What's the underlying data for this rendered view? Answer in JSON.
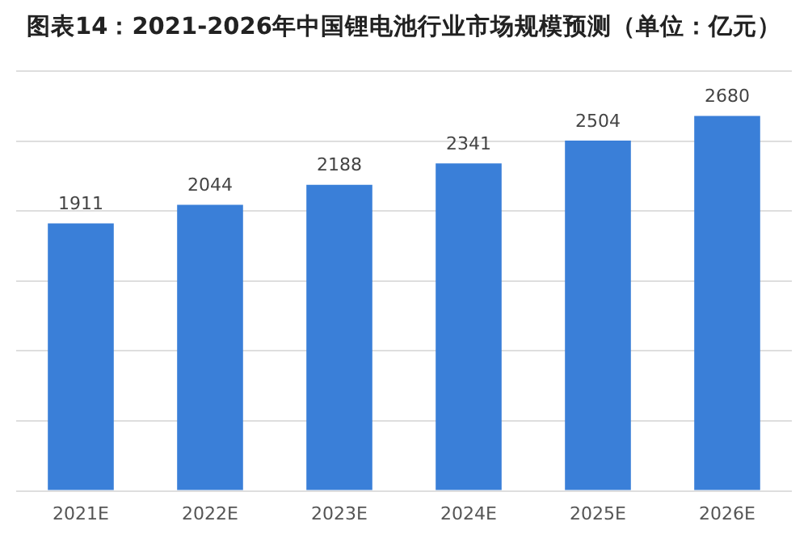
{
  "chart_data": {
    "type": "bar",
    "title": "图表14：2021-2026年中国锂电池行业市场规模预测（单位：亿元）",
    "categories": [
      "2021E",
      "2022E",
      "2023E",
      "2024E",
      "2025E",
      "2026E"
    ],
    "values": [
      1911,
      2044,
      2188,
      2341,
      2504,
      2680
    ],
    "color": "#3a7fd8",
    "ylim": [
      0,
      3000
    ],
    "yticks": [
      {
        "value": 0,
        "label": null
      },
      {
        "value": 500,
        "label": null
      },
      {
        "value": 1000,
        "label": null
      },
      {
        "value": 1500,
        "label": null
      },
      {
        "value": 2000,
        "label": null
      },
      {
        "value": 2500,
        "label": null
      },
      {
        "value": 3000,
        "label": null
      }
    ],
    "grid": "y",
    "tick_labels": "x",
    "data_labels": true
  }
}
